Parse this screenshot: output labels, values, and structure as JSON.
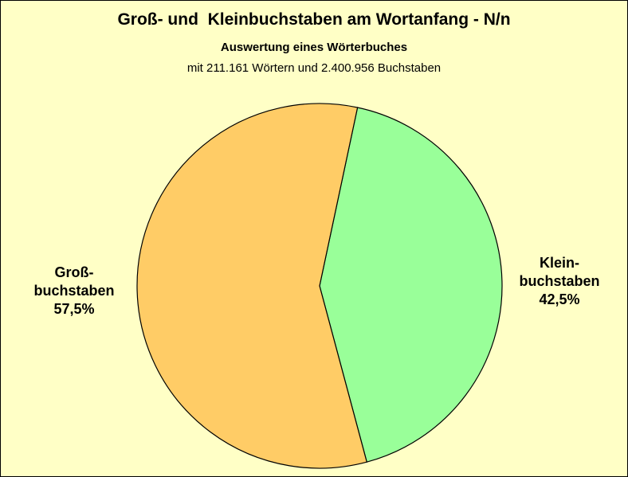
{
  "chart_data": {
    "type": "pie",
    "title": "Groß- und  Kleinbuchstaben am Wortanfang - N/n",
    "subtitle": "Auswertung eines Wörterbuches",
    "subtitle2": "mit 211.161 Wörtern und 2.400.956 Buchstaben",
    "slices": [
      {
        "label_lines": [
          "Klein-",
          "buchstaben"
        ],
        "value": 42.5,
        "value_label": "42,5%",
        "color": "#99ff99"
      },
      {
        "label_lines": [
          "Groß-",
          "buchstaben"
        ],
        "value": 57.5,
        "value_label": "57,5%",
        "color": "#ffcc66"
      }
    ],
    "background_color": "#ffffc6"
  }
}
